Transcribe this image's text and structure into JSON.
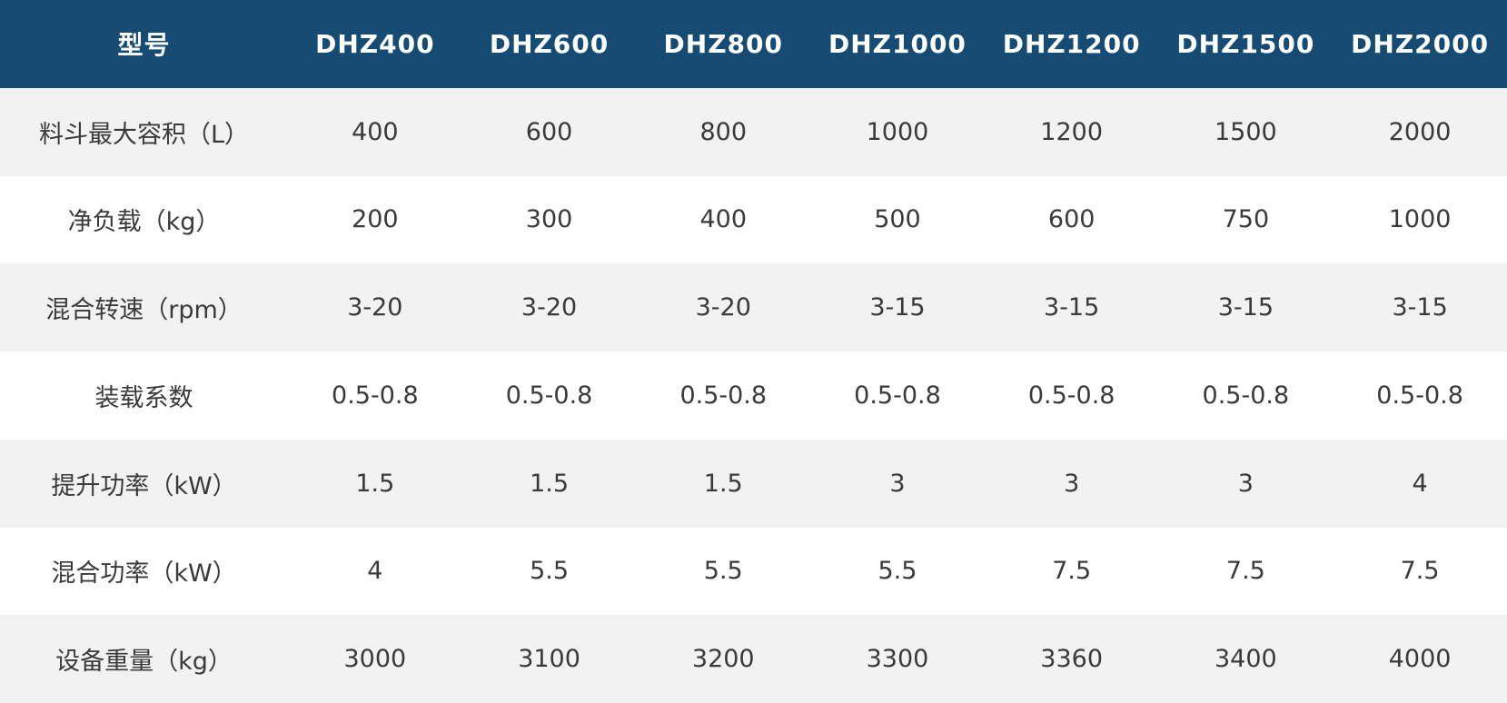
{
  "table": {
    "header": [
      "型号",
      "DHZ400",
      "DHZ600",
      "DHZ800",
      "DHZ1000",
      "DHZ1200",
      "DHZ1500",
      "DHZ2000"
    ],
    "rows": [
      [
        "料斗最大容积（L）",
        "400",
        "600",
        "800",
        "1000",
        "1200",
        "1500",
        "2000"
      ],
      [
        "净负载（kg）",
        "200",
        "300",
        "400",
        "500",
        "600",
        "750",
        "1000"
      ],
      [
        "混合转速（rpm）",
        "3-20",
        "3-20",
        "3-20",
        "3-15",
        "3-15",
        "3-15",
        "3-15"
      ],
      [
        "装载系数",
        "0.5-0.8",
        "0.5-0.8",
        "0.5-0.8",
        "0.5-0.8",
        "0.5-0.8",
        "0.5-0.8",
        "0.5-0.8"
      ],
      [
        "提升功率（kW）",
        "1.5",
        "1.5",
        "1.5",
        "3",
        "3",
        "3",
        "4"
      ],
      [
        "混合功率（kW）",
        "4",
        "5.5",
        "5.5",
        "5.5",
        "7.5",
        "7.5",
        "7.5"
      ],
      [
        "设备重量（kg）",
        "3000",
        "3100",
        "3200",
        "3300",
        "3360",
        "3400",
        "4000"
      ]
    ]
  }
}
